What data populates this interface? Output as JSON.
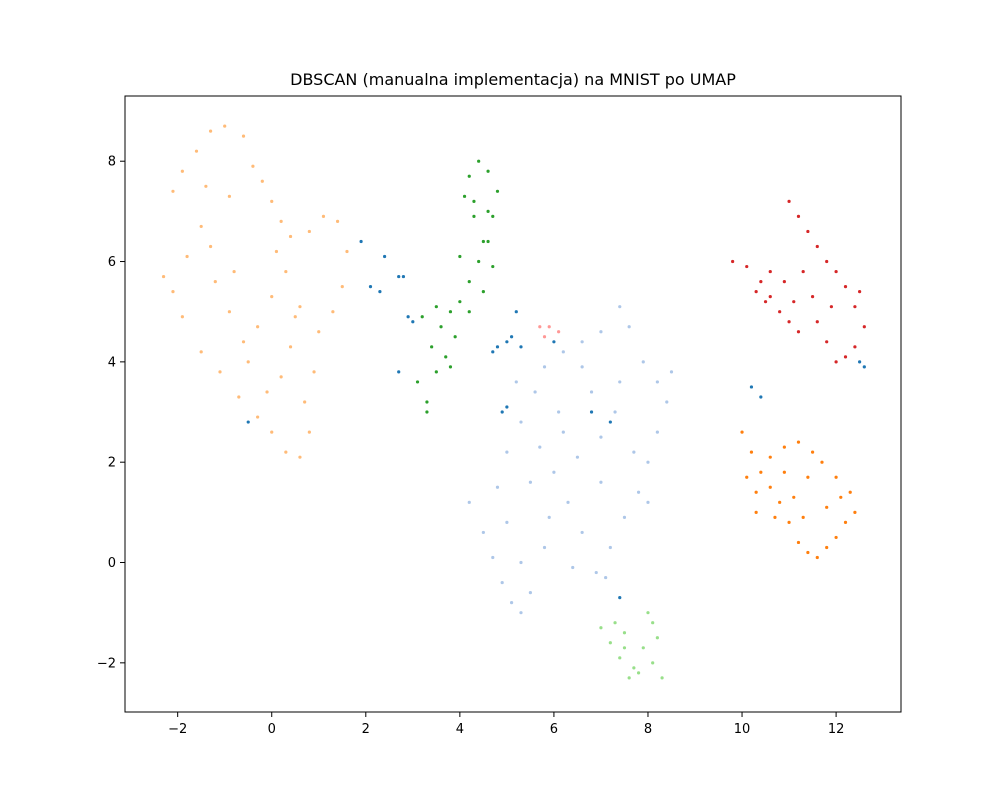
{
  "chart_data": {
    "type": "scatter",
    "title": "DBSCAN (manualna implementacja) na MNIST po UMAP",
    "xlabel": "",
    "ylabel": "",
    "xlim": [
      -3.12,
      13.38
    ],
    "ylim": [
      -2.98,
      9.3
    ],
    "x_ticks": [
      -2,
      0,
      2,
      4,
      6,
      8,
      10,
      12
    ],
    "y_ticks": [
      -2,
      0,
      2,
      4,
      6,
      8
    ],
    "grid": false,
    "legend": "none",
    "clusters": [
      {
        "color": "#ffbb78",
        "points": [
          [
            -2.3,
            5.7
          ],
          [
            -2.1,
            7.4
          ],
          [
            -1.9,
            7.8
          ],
          [
            -1.6,
            8.2
          ],
          [
            -1.3,
            8.6
          ],
          [
            -1.0,
            8.7
          ],
          [
            -0.6,
            8.5
          ],
          [
            -0.4,
            7.9
          ],
          [
            -0.2,
            7.6
          ],
          [
            0.0,
            7.2
          ],
          [
            0.2,
            6.8
          ],
          [
            0.4,
            6.5
          ],
          [
            0.8,
            6.6
          ],
          [
            1.1,
            6.9
          ],
          [
            1.4,
            6.8
          ],
          [
            1.6,
            6.2
          ],
          [
            1.5,
            5.5
          ],
          [
            1.3,
            5.0
          ],
          [
            1.0,
            4.6
          ],
          [
            0.9,
            3.8
          ],
          [
            0.7,
            3.2
          ],
          [
            0.8,
            2.6
          ],
          [
            0.6,
            2.1
          ],
          [
            0.3,
            2.2
          ],
          [
            0.0,
            2.6
          ],
          [
            -0.3,
            2.9
          ],
          [
            -0.7,
            3.3
          ],
          [
            -1.1,
            3.8
          ],
          [
            -1.5,
            4.2
          ],
          [
            -1.9,
            4.9
          ],
          [
            -2.1,
            5.4
          ],
          [
            -1.8,
            6.1
          ],
          [
            -1.5,
            6.7
          ],
          [
            -1.2,
            5.6
          ],
          [
            -0.9,
            5.0
          ],
          [
            -0.6,
            4.4
          ],
          [
            -0.3,
            4.7
          ],
          [
            0.0,
            5.3
          ],
          [
            0.3,
            5.8
          ],
          [
            0.6,
            5.1
          ],
          [
            0.4,
            4.3
          ],
          [
            0.2,
            3.7
          ],
          [
            -0.1,
            3.4
          ],
          [
            -0.5,
            4.0
          ],
          [
            -0.8,
            5.8
          ],
          [
            -1.3,
            6.3
          ],
          [
            -0.9,
            7.3
          ],
          [
            -1.4,
            7.5
          ],
          [
            0.1,
            6.2
          ],
          [
            0.5,
            4.9
          ]
        ]
      },
      {
        "color": "#2ca02c",
        "points": [
          [
            3.1,
            3.6
          ],
          [
            3.3,
            3.2
          ],
          [
            3.5,
            3.8
          ],
          [
            3.4,
            4.3
          ],
          [
            3.6,
            4.7
          ],
          [
            3.8,
            5.0
          ],
          [
            4.0,
            5.2
          ],
          [
            4.2,
            5.6
          ],
          [
            4.4,
            6.0
          ],
          [
            4.5,
            6.4
          ],
          [
            4.3,
            6.9
          ],
          [
            4.1,
            7.3
          ],
          [
            4.2,
            7.7
          ],
          [
            4.4,
            8.0
          ],
          [
            4.6,
            7.8
          ],
          [
            4.8,
            7.4
          ],
          [
            4.7,
            6.9
          ],
          [
            4.6,
            6.4
          ],
          [
            4.7,
            5.9
          ],
          [
            4.5,
            5.4
          ],
          [
            4.2,
            5.0
          ],
          [
            3.9,
            4.5
          ],
          [
            3.7,
            4.1
          ],
          [
            3.2,
            4.9
          ],
          [
            3.5,
            5.1
          ],
          [
            4.0,
            6.1
          ],
          [
            4.3,
            7.2
          ],
          [
            4.6,
            7.0
          ],
          [
            3.3,
            3.0
          ],
          [
            3.8,
            3.9
          ]
        ]
      },
      {
        "color": "#aec7e8",
        "points": [
          [
            4.2,
            1.2
          ],
          [
            4.5,
            0.6
          ],
          [
            4.7,
            0.1
          ],
          [
            4.9,
            -0.4
          ],
          [
            5.1,
            -0.8
          ],
          [
            5.3,
            -1.0
          ],
          [
            5.5,
            -0.6
          ],
          [
            5.3,
            0.0
          ],
          [
            5.0,
            0.8
          ],
          [
            4.8,
            1.5
          ],
          [
            5.0,
            2.2
          ],
          [
            5.3,
            2.8
          ],
          [
            5.6,
            3.4
          ],
          [
            5.8,
            3.9
          ],
          [
            6.2,
            4.2
          ],
          [
            6.6,
            4.4
          ],
          [
            7.0,
            4.6
          ],
          [
            7.4,
            5.1
          ],
          [
            7.6,
            4.7
          ],
          [
            7.9,
            4.0
          ],
          [
            8.2,
            3.6
          ],
          [
            8.5,
            3.8
          ],
          [
            8.4,
            3.2
          ],
          [
            8.2,
            2.6
          ],
          [
            8.0,
            2.0
          ],
          [
            7.8,
            1.4
          ],
          [
            7.5,
            0.9
          ],
          [
            7.2,
            0.3
          ],
          [
            6.9,
            -0.2
          ],
          [
            6.6,
            0.6
          ],
          [
            6.3,
            1.2
          ],
          [
            6.0,
            1.8
          ],
          [
            5.7,
            2.3
          ],
          [
            6.5,
            2.1
          ],
          [
            7.0,
            2.5
          ],
          [
            7.3,
            3.0
          ],
          [
            6.8,
            3.4
          ],
          [
            6.1,
            3.0
          ],
          [
            5.5,
            1.6
          ],
          [
            5.9,
            0.9
          ],
          [
            6.4,
            -0.1
          ],
          [
            7.0,
            1.6
          ],
          [
            7.7,
            2.2
          ],
          [
            8.0,
            1.2
          ],
          [
            5.2,
            3.6
          ],
          [
            6.6,
            3.9
          ],
          [
            7.4,
            3.6
          ],
          [
            5.8,
            0.3
          ],
          [
            6.2,
            2.6
          ],
          [
            7.1,
            -0.3
          ]
        ]
      },
      {
        "color": "#98df8a",
        "points": [
          [
            7.2,
            -1.6
          ],
          [
            7.4,
            -1.9
          ],
          [
            7.5,
            -1.4
          ],
          [
            7.7,
            -2.1
          ],
          [
            7.9,
            -1.7
          ],
          [
            8.1,
            -2.0
          ],
          [
            8.2,
            -1.5
          ],
          [
            8.0,
            -1.0
          ],
          [
            7.3,
            -1.2
          ],
          [
            7.6,
            -2.3
          ],
          [
            8.3,
            -2.3
          ],
          [
            7.8,
            -2.2
          ],
          [
            8.1,
            -1.2
          ],
          [
            7.5,
            -1.7
          ],
          [
            7.0,
            -1.3
          ]
        ]
      },
      {
        "color": "#d62728",
        "points": [
          [
            9.8,
            6.0
          ],
          [
            10.1,
            5.9
          ],
          [
            10.4,
            5.6
          ],
          [
            10.6,
            5.3
          ],
          [
            10.8,
            5.0
          ],
          [
            11.0,
            4.8
          ],
          [
            11.2,
            4.6
          ],
          [
            11.1,
            5.2
          ],
          [
            10.9,
            5.6
          ],
          [
            10.6,
            5.8
          ],
          [
            11.0,
            7.2
          ],
          [
            11.2,
            6.9
          ],
          [
            11.4,
            6.6
          ],
          [
            11.6,
            6.3
          ],
          [
            11.8,
            6.0
          ],
          [
            12.0,
            5.8
          ],
          [
            12.2,
            5.5
          ],
          [
            12.4,
            5.1
          ],
          [
            12.6,
            4.7
          ],
          [
            12.4,
            4.3
          ],
          [
            12.2,
            4.1
          ],
          [
            12.0,
            4.0
          ],
          [
            11.8,
            4.4
          ],
          [
            11.6,
            4.8
          ],
          [
            11.5,
            5.3
          ],
          [
            11.3,
            5.8
          ],
          [
            10.5,
            5.2
          ],
          [
            10.3,
            5.4
          ],
          [
            12.5,
            5.4
          ],
          [
            11.9,
            5.1
          ]
        ]
      },
      {
        "color": "#ff7f0e",
        "points": [
          [
            10.0,
            2.6
          ],
          [
            10.2,
            2.2
          ],
          [
            10.4,
            1.8
          ],
          [
            10.6,
            1.5
          ],
          [
            10.8,
            1.2
          ],
          [
            11.0,
            0.8
          ],
          [
            11.2,
            0.4
          ],
          [
            11.4,
            0.2
          ],
          [
            11.6,
            0.1
          ],
          [
            11.8,
            0.3
          ],
          [
            12.0,
            0.5
          ],
          [
            12.2,
            0.8
          ],
          [
            12.4,
            1.0
          ],
          [
            12.3,
            1.4
          ],
          [
            12.0,
            1.7
          ],
          [
            11.7,
            2.0
          ],
          [
            11.5,
            2.2
          ],
          [
            11.2,
            2.4
          ],
          [
            10.9,
            2.3
          ],
          [
            10.6,
            2.1
          ],
          [
            10.3,
            1.4
          ],
          [
            10.3,
            1.0
          ],
          [
            10.7,
            0.9
          ],
          [
            11.1,
            1.3
          ],
          [
            11.4,
            1.7
          ],
          [
            11.8,
            1.1
          ],
          [
            10.1,
            1.7
          ],
          [
            11.3,
            0.9
          ],
          [
            12.1,
            1.3
          ],
          [
            10.9,
            1.8
          ]
        ]
      },
      {
        "color": "#ff9896",
        "points": [
          [
            5.7,
            4.7
          ],
          [
            5.9,
            4.7
          ],
          [
            6.1,
            4.6
          ],
          [
            5.8,
            4.5
          ]
        ]
      },
      {
        "color": "#1f77b4",
        "points": [
          [
            1.9,
            6.4
          ],
          [
            2.1,
            5.5
          ],
          [
            2.3,
            5.4
          ],
          [
            2.4,
            6.1
          ],
          [
            2.7,
            5.7
          ],
          [
            2.8,
            5.7
          ],
          [
            2.7,
            3.8
          ],
          [
            2.9,
            4.9
          ],
          [
            -0.5,
            2.8
          ],
          [
            4.8,
            4.3
          ],
          [
            5.0,
            4.4
          ],
          [
            5.1,
            4.5
          ],
          [
            5.3,
            4.3
          ],
          [
            4.9,
            3.0
          ],
          [
            5.0,
            3.1
          ],
          [
            6.0,
            4.4
          ],
          [
            6.8,
            3.0
          ],
          [
            7.2,
            2.8
          ],
          [
            7.4,
            -0.7
          ],
          [
            10.2,
            3.5
          ],
          [
            10.4,
            3.3
          ],
          [
            12.5,
            4.0
          ],
          [
            12.6,
            3.9
          ],
          [
            5.2,
            5.0
          ],
          [
            4.7,
            4.2
          ],
          [
            3.0,
            4.8
          ]
        ]
      }
    ]
  }
}
